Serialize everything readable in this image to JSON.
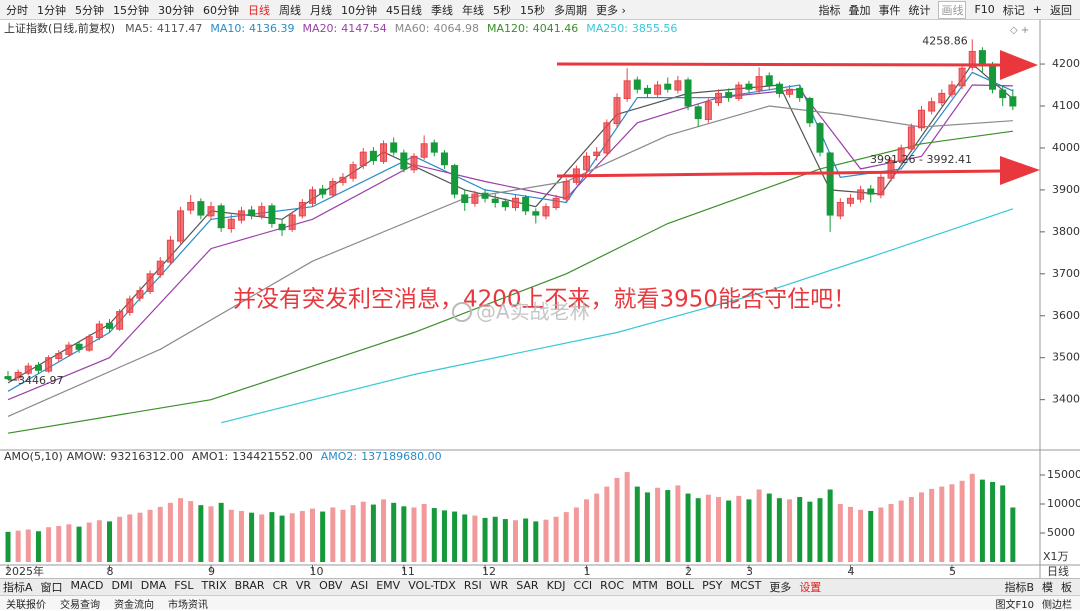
{
  "toolbar": {
    "periods": [
      "分时",
      "1分钟",
      "5分钟",
      "15分钟",
      "30分钟",
      "60分钟",
      "日线",
      "周线",
      "月线",
      "10分钟",
      "45日线",
      "季线",
      "年线",
      "5秒",
      "15秒",
      "多周期",
      "更多 ›"
    ],
    "active_index": 6,
    "tools": [
      "指标",
      "叠加",
      "事件",
      "统计",
      "画线",
      "F10",
      "标记",
      "+",
      "返回"
    ],
    "tools_active_index": 4
  },
  "chart_data": {
    "type": "candlestick",
    "title": "上证指数(日线,前复权)",
    "ylim": [
      3280,
      4305
    ],
    "yticks": [
      3400,
      3500,
      3600,
      3700,
      3800,
      3900,
      4000,
      4100,
      4200
    ],
    "up_color": "#e8454a",
    "down_color": "#16993a",
    "ma": [
      {
        "name": "MA5:",
        "value": 4117.47,
        "color": "#555555",
        "x": [
          0,
          10,
          20,
          27,
          37,
          45,
          52,
          60,
          67,
          76,
          81,
          86,
          95,
          99
        ],
        "values": [
          3440,
          3580,
          3850,
          3830,
          3990,
          3900,
          3860,
          4080,
          4130,
          4150,
          3900,
          3890,
          4200,
          4117
        ]
      },
      {
        "name": "MA10:",
        "value": 4136.39,
        "color": "#2a8cc8",
        "x": [
          0,
          10,
          20,
          30,
          40,
          47,
          55,
          62,
          70,
          78,
          82,
          88,
          95,
          99
        ],
        "values": [
          3420,
          3560,
          3830,
          3860,
          3980,
          3900,
          3870,
          4120,
          4120,
          4150,
          3930,
          3950,
          4180,
          4136
        ]
      },
      {
        "name": "MA20:",
        "value": 4147.54,
        "color": "#9b3fa8",
        "x": [
          0,
          10,
          20,
          30,
          40,
          47,
          55,
          62,
          70,
          78,
          84,
          90,
          95,
          99
        ],
        "values": [
          3400,
          3500,
          3760,
          3830,
          3960,
          3920,
          3880,
          4060,
          4120,
          4140,
          3950,
          3980,
          4150,
          4148
        ]
      },
      {
        "name": "MA60:",
        "value": 4064.98,
        "color": "#8a8a8a",
        "x": [
          0,
          15,
          30,
          45,
          55,
          65,
          75,
          82,
          90,
          99
        ],
        "values": [
          3360,
          3520,
          3730,
          3880,
          3920,
          4030,
          4100,
          4080,
          4050,
          4065
        ]
      },
      {
        "name": "MA120:",
        "value": 4041.46,
        "color": "#3a8f2a",
        "x": [
          0,
          20,
          40,
          55,
          65,
          80,
          90,
          99
        ],
        "values": [
          3320,
          3400,
          3560,
          3700,
          3820,
          3950,
          4010,
          4040
        ]
      },
      {
        "name": "MA250:",
        "value": 3855.56,
        "color": "#35c8d8",
        "x": [
          21,
          40,
          60,
          75,
          85,
          99
        ],
        "values": [
          3345,
          3460,
          3560,
          3660,
          3740,
          3855
        ]
      }
    ],
    "candles": [
      [
        3455,
        3468,
        3446.97,
        3450
      ],
      [
        3452,
        3472,
        3445,
        3465
      ],
      [
        3463,
        3488,
        3458,
        3480
      ],
      [
        3482,
        3490,
        3462,
        3470
      ],
      [
        3468,
        3506,
        3464,
        3500
      ],
      [
        3498,
        3518,
        3490,
        3510
      ],
      [
        3508,
        3538,
        3502,
        3530
      ],
      [
        3532,
        3540,
        3512,
        3520
      ],
      [
        3518,
        3556,
        3514,
        3550
      ],
      [
        3548,
        3588,
        3542,
        3580
      ],
      [
        3582,
        3592,
        3560,
        3570
      ],
      [
        3568,
        3616,
        3564,
        3610
      ],
      [
        3608,
        3648,
        3600,
        3640
      ],
      [
        3642,
        3670,
        3634,
        3660
      ],
      [
        3658,
        3708,
        3652,
        3700
      ],
      [
        3698,
        3740,
        3690,
        3730
      ],
      [
        3728,
        3790,
        3722,
        3780
      ],
      [
        3778,
        3860,
        3772,
        3850
      ],
      [
        3852,
        3888,
        3842,
        3870
      ],
      [
        3872,
        3880,
        3830,
        3840
      ],
      [
        3838,
        3872,
        3828,
        3860
      ],
      [
        3862,
        3868,
        3800,
        3810
      ],
      [
        3808,
        3842,
        3798,
        3830
      ],
      [
        3828,
        3860,
        3820,
        3850
      ],
      [
        3852,
        3862,
        3830,
        3840
      ],
      [
        3838,
        3870,
        3830,
        3860
      ],
      [
        3862,
        3868,
        3810,
        3820
      ],
      [
        3818,
        3830,
        3790,
        3805
      ],
      [
        3806,
        3848,
        3800,
        3840
      ],
      [
        3838,
        3878,
        3832,
        3870
      ],
      [
        3868,
        3908,
        3860,
        3900
      ],
      [
        3902,
        3912,
        3880,
        3890
      ],
      [
        3888,
        3928,
        3882,
        3920
      ],
      [
        3918,
        3940,
        3910,
        3930
      ],
      [
        3928,
        3968,
        3920,
        3960
      ],
      [
        3958,
        4000,
        3950,
        3990
      ],
      [
        3992,
        4002,
        3960,
        3970
      ],
      [
        3968,
        4018,
        3962,
        4010
      ],
      [
        4012,
        4025,
        3982,
        3990
      ],
      [
        3988,
        3996,
        3942,
        3950
      ],
      [
        3948,
        3988,
        3940,
        3980
      ],
      [
        3978,
        4030,
        3972,
        4010
      ],
      [
        4012,
        4020,
        3980,
        3990
      ],
      [
        3988,
        3995,
        3950,
        3960
      ],
      [
        3958,
        3962,
        3880,
        3890
      ],
      [
        3888,
        3900,
        3850,
        3870
      ],
      [
        3868,
        3898,
        3860,
        3890
      ],
      [
        3892,
        3902,
        3870,
        3880
      ],
      [
        3878,
        3890,
        3858,
        3870
      ],
      [
        3872,
        3880,
        3850,
        3860
      ],
      [
        3858,
        3888,
        3850,
        3880
      ],
      [
        3882,
        3888,
        3840,
        3850
      ],
      [
        3848,
        3856,
        3820,
        3840
      ],
      [
        3838,
        3868,
        3830,
        3860
      ],
      [
        3858,
        3888,
        3852,
        3880
      ],
      [
        3878,
        3928,
        3872,
        3920
      ],
      [
        3918,
        3958,
        3912,
        3950
      ],
      [
        3948,
        3990,
        3940,
        3980
      ],
      [
        3982,
        4002,
        3970,
        3990
      ],
      [
        3988,
        4068,
        3980,
        4060
      ],
      [
        4058,
        4130,
        4050,
        4120
      ],
      [
        4118,
        4190,
        4110,
        4160
      ],
      [
        4162,
        4170,
        4130,
        4140
      ],
      [
        4142,
        4150,
        4120,
        4130
      ],
      [
        4128,
        4160,
        4120,
        4150
      ],
      [
        4152,
        4168,
        4132,
        4140
      ],
      [
        4138,
        4172,
        4130,
        4160
      ],
      [
        4162,
        4168,
        4090,
        4100
      ],
      [
        4098,
        4105,
        4050,
        4070
      ],
      [
        4068,
        4118,
        4060,
        4110
      ],
      [
        4108,
        4140,
        4100,
        4130
      ],
      [
        4132,
        4142,
        4110,
        4120
      ],
      [
        4118,
        4158,
        4112,
        4150
      ],
      [
        4152,
        4160,
        4130,
        4140
      ],
      [
        4138,
        4192,
        4130,
        4170
      ],
      [
        4172,
        4180,
        4140,
        4150
      ],
      [
        4152,
        4158,
        4120,
        4130
      ],
      [
        4128,
        4150,
        4120,
        4140
      ],
      [
        4142,
        4150,
        4110,
        4120
      ],
      [
        4118,
        4122,
        4050,
        4060
      ],
      [
        4058,
        4062,
        3980,
        3990
      ],
      [
        3988,
        3990,
        3800,
        3840
      ],
      [
        3838,
        3880,
        3830,
        3870
      ],
      [
        3868,
        3890,
        3860,
        3880
      ],
      [
        3878,
        3910,
        3870,
        3900
      ],
      [
        3902,
        3912,
        3870,
        3890
      ],
      [
        3888,
        3938,
        3880,
        3930
      ],
      [
        3928,
        3978,
        3920,
        3970
      ],
      [
        3968,
        4008,
        3960,
        4000
      ],
      [
        3998,
        4058,
        3990,
        4050
      ],
      [
        4048,
        4100,
        4040,
        4090
      ],
      [
        4088,
        4120,
        4080,
        4110
      ],
      [
        4108,
        4140,
        4100,
        4130
      ],
      [
        4128,
        4160,
        4120,
        4150
      ],
      [
        4148,
        4200,
        4140,
        4190
      ],
      [
        4192,
        4258.86,
        4185,
        4230
      ],
      [
        4232,
        4240,
        4180,
        4200
      ],
      [
        4198,
        4205,
        4130,
        4140
      ],
      [
        4138,
        4150,
        4100,
        4120
      ],
      [
        4122,
        4140,
        4090,
        4100
      ]
    ],
    "categories": [
      "2025年",
      null,
      null,
      null,
      null,
      null,
      null,
      null,
      null,
      null,
      "8",
      null,
      null,
      null,
      null,
      null,
      null,
      null,
      null,
      null,
      "9",
      null,
      null,
      null,
      null,
      null,
      null,
      null,
      null,
      null,
      "10",
      null,
      null,
      null,
      null,
      null,
      null,
      null,
      null,
      "11",
      null,
      null,
      null,
      null,
      null,
      null,
      null,
      "12",
      null,
      null,
      null,
      null,
      null,
      null,
      null,
      null,
      null,
      "1",
      null,
      null,
      null,
      null,
      null,
      null,
      null,
      null,
      null,
      "2",
      null,
      null,
      null,
      null,
      null,
      "3",
      null,
      null,
      null,
      null,
      null,
      null,
      null,
      null,
      null,
      "4",
      null,
      null,
      null,
      null,
      null,
      null,
      null,
      null,
      null,
      "5",
      null,
      null,
      null,
      null,
      null,
      null
    ],
    "period_label": "日线",
    "high_label": {
      "value": 4258.86,
      "index": 95
    },
    "low_label": {
      "value": 3446.97,
      "index": 0
    },
    "range_note": "3991.26 - 3992.41",
    "volume": {
      "legend": [
        {
          "name": "AMO(5,10)",
          "color": "#333333"
        },
        {
          "name": "AMOW:",
          "value": "93216312.00",
          "color": "#333333"
        },
        {
          "name": "AMO1:",
          "value": "134421552.00",
          "color": "#333333"
        },
        {
          "name": "AMO2:",
          "value": "137189680.00",
          "color": "#2a8cc8"
        }
      ],
      "ylim": [
        0,
        16550
      ],
      "yticks": [
        5000,
        10000,
        15000
      ],
      "unit": "X1万",
      "values": [
        5200,
        5400,
        5600,
        5300,
        6000,
        6200,
        6500,
        6100,
        6800,
        7200,
        7000,
        7800,
        8200,
        8500,
        9000,
        9500,
        10200,
        11000,
        10500,
        9800,
        9600,
        10200,
        9000,
        8800,
        8500,
        8200,
        8600,
        8000,
        8400,
        8800,
        9200,
        8700,
        9400,
        9000,
        9800,
        10400,
        9900,
        10800,
        10200,
        9600,
        9400,
        10000,
        9300,
        8900,
        8700,
        8200,
        8000,
        7600,
        7800,
        7400,
        7200,
        7500,
        7000,
        7300,
        7800,
        8600,
        9400,
        10800,
        11800,
        13000,
        14500,
        15500,
        13000,
        12000,
        12800,
        12400,
        13200,
        11800,
        11000,
        11600,
        11200,
        10600,
        11400,
        10800,
        12500,
        11800,
        11000,
        10800,
        11200,
        10400,
        11000,
        12500,
        10000,
        9500,
        9000,
        8800,
        9400,
        10000,
        10600,
        11200,
        12000,
        12600,
        13000,
        13400,
        14000,
        15200,
        14200,
        13800,
        13200,
        9400
      ]
    }
  },
  "overlay_text": "并没有突发利空消息，4200上不来，就看3950能否守住吧！",
  "watermark": "@A实战老林",
  "indicator_tabs": [
    "指标A",
    "窗口",
    "MACD",
    "DMI",
    "DMA",
    "FSL",
    "TRIX",
    "BRAR",
    "CR",
    "VR",
    "OBV",
    "ASI",
    "EMV",
    "VOL-TDX",
    "RSI",
    "WR",
    "SAR",
    "KDJ",
    "CCI",
    "ROC",
    "MTM",
    "BOLL",
    "PSY",
    "MCST",
    "更多",
    "设置"
  ],
  "indicator_active_index": 25,
  "indicator_right": [
    "指标B",
    "模",
    "板"
  ],
  "status_bar": [
    "关联报价",
    "交易查询",
    "资金流向",
    "市场资讯"
  ],
  "status_right": [
    "图文F10",
    "侧边栏"
  ]
}
